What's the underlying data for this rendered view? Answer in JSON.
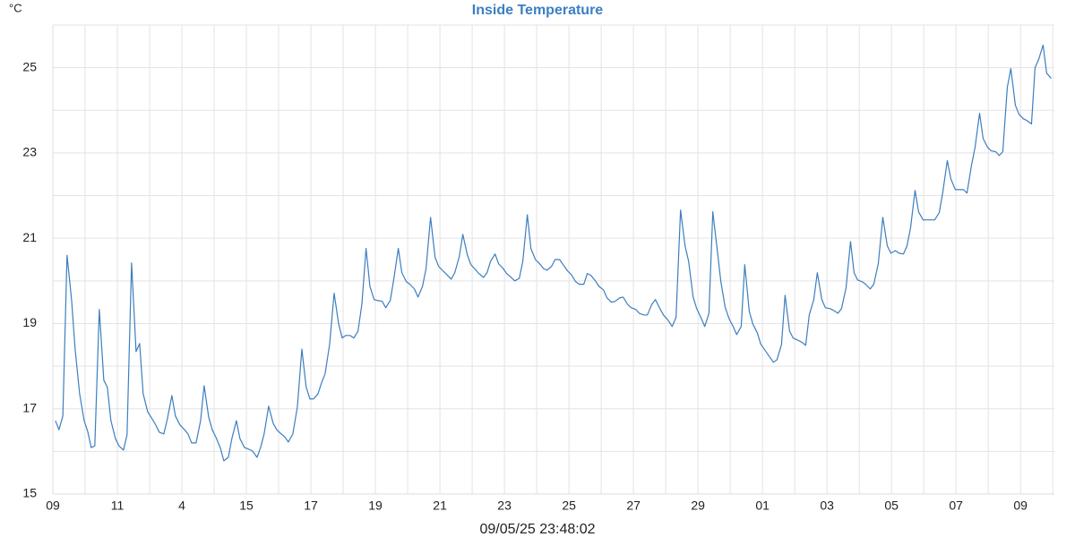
{
  "chart_data": {
    "type": "line",
    "title": "Inside Temperature",
    "y_unit": "°C",
    "xlabel": "09/05/25 23:48:02",
    "xlim": [
      0,
      31.05
    ],
    "ylim": [
      15,
      26
    ],
    "xticks": [
      {
        "value": 0,
        "label": "09"
      },
      {
        "value": 2,
        "label": "11"
      },
      4,
      {
        "value": 6,
        "label": "15"
      },
      {
        "value": 8,
        "label": "17"
      },
      {
        "value": 10,
        "label": "19"
      },
      {
        "value": 12,
        "label": "21"
      },
      {
        "value": 14,
        "label": "23"
      },
      {
        "value": 16,
        "label": "25"
      },
      {
        "value": 18,
        "label": "27"
      },
      {
        "value": 20,
        "label": "29"
      },
      {
        "value": 22,
        "label": "01"
      },
      {
        "value": 24,
        "label": "03"
      },
      {
        "value": 26,
        "label": "05"
      },
      {
        "value": 28,
        "label": "07"
      },
      {
        "value": 30,
        "label": "09"
      }
    ],
    "xminorticks": [
      1,
      3,
      5,
      7,
      9,
      11,
      13,
      15,
      17,
      19,
      21,
      23,
      25,
      27,
      29,
      31
    ],
    "yticks": [
      15,
      17,
      19,
      21,
      23,
      25
    ],
    "yminorticks": [
      16,
      18,
      20,
      22,
      24,
      26
    ],
    "grid": true,
    "series": [
      {
        "color": "#3d7ebf",
        "x": [
          0.08,
          0.19,
          0.31,
          0.44,
          0.58,
          0.69,
          0.83,
          0.97,
          1.08,
          1.19,
          1.3,
          1.44,
          1.58,
          1.69,
          1.8,
          1.94,
          2.05,
          2.19,
          2.3,
          2.44,
          2.58,
          2.69,
          2.8,
          2.94,
          3.08,
          3.19,
          3.3,
          3.44,
          3.55,
          3.69,
          3.8,
          3.94,
          4.08,
          4.19,
          4.3,
          4.44,
          4.58,
          4.69,
          4.83,
          4.94,
          5.05,
          5.19,
          5.3,
          5.44,
          5.55,
          5.69,
          5.8,
          5.94,
          6.08,
          6.19,
          6.33,
          6.44,
          6.55,
          6.69,
          6.83,
          6.94,
          7.05,
          7.19,
          7.3,
          7.44,
          7.58,
          7.72,
          7.85,
          7.97,
          8.08,
          8.22,
          8.33,
          8.44,
          8.58,
          8.72,
          8.86,
          8.97,
          9.08,
          9.21,
          9.33,
          9.46,
          9.58,
          9.71,
          9.83,
          9.96,
          10.07,
          10.21,
          10.32,
          10.46,
          10.57,
          10.71,
          10.82,
          10.96,
          11.07,
          11.21,
          11.32,
          11.46,
          11.57,
          11.71,
          11.85,
          11.96,
          12.1,
          12.21,
          12.35,
          12.46,
          12.6,
          12.71,
          12.85,
          12.96,
          13.07,
          13.21,
          13.35,
          13.46,
          13.57,
          13.71,
          13.82,
          13.96,
          14.07,
          14.21,
          14.32,
          14.46,
          14.57,
          14.71,
          14.82,
          14.96,
          15.07,
          15.21,
          15.32,
          15.46,
          15.57,
          15.71,
          15.82,
          15.96,
          16.07,
          16.21,
          16.32,
          16.46,
          16.57,
          16.68,
          16.82,
          16.93,
          17.07,
          17.18,
          17.32,
          17.43,
          17.57,
          17.68,
          17.82,
          17.93,
          18.07,
          18.18,
          18.32,
          18.43,
          18.57,
          18.68,
          18.82,
          18.93,
          19.07,
          19.2,
          19.32,
          19.46,
          19.6,
          19.71,
          19.85,
          19.96,
          20.09,
          20.21,
          20.34,
          20.46,
          20.6,
          20.71,
          20.84,
          20.96,
          21.09,
          21.2,
          21.34,
          21.45,
          21.59,
          21.7,
          21.84,
          21.95,
          22.09,
          22.2,
          22.34,
          22.45,
          22.59,
          22.7,
          22.84,
          22.95,
          23.09,
          23.2,
          23.34,
          23.45,
          23.59,
          23.7,
          23.84,
          23.95,
          24.09,
          24.2,
          24.34,
          24.45,
          24.59,
          24.73,
          24.84,
          24.95,
          25.09,
          25.2,
          25.34,
          25.45,
          25.59,
          25.73,
          25.87,
          25.98,
          26.12,
          26.23,
          26.37,
          26.48,
          26.59,
          26.73,
          26.84,
          26.98,
          27.09,
          27.23,
          27.34,
          27.48,
          27.59,
          27.73,
          27.84,
          27.98,
          28.09,
          28.23,
          28.34,
          28.48,
          28.59,
          28.73,
          28.84,
          28.98,
          29.09,
          29.23,
          29.34,
          29.45,
          29.59,
          29.7,
          29.84,
          29.95,
          30.09,
          30.2,
          30.34,
          30.45,
          30.56,
          30.7,
          30.81,
          30.95
        ],
        "values": [
          16.72,
          16.51,
          16.83,
          20.6,
          19.56,
          18.4,
          17.35,
          16.72,
          16.47,
          16.09,
          16.13,
          19.33,
          17.67,
          17.5,
          16.72,
          16.3,
          16.13,
          16.03,
          16.39,
          20.42,
          18.34,
          18.53,
          17.35,
          16.93,
          16.76,
          16.62,
          16.45,
          16.41,
          16.76,
          17.31,
          16.83,
          16.62,
          16.51,
          16.41,
          16.2,
          16.2,
          16.72,
          17.54,
          16.81,
          16.51,
          16.34,
          16.09,
          15.78,
          15.86,
          16.3,
          16.72,
          16.3,
          16.09,
          16.05,
          16.01,
          15.86,
          16.09,
          16.41,
          17.06,
          16.66,
          16.51,
          16.43,
          16.34,
          16.22,
          16.41,
          17.04,
          18.4,
          17.52,
          17.23,
          17.23,
          17.35,
          17.61,
          17.82,
          18.51,
          19.71,
          18.99,
          18.66,
          18.72,
          18.72,
          18.66,
          18.82,
          19.45,
          20.76,
          19.87,
          19.56,
          19.54,
          19.52,
          19.37,
          19.54,
          20.04,
          20.76,
          20.19,
          19.98,
          19.92,
          19.81,
          19.62,
          19.87,
          20.29,
          21.49,
          20.55,
          20.34,
          20.23,
          20.15,
          20.04,
          20.19,
          20.57,
          21.09,
          20.61,
          20.38,
          20.29,
          20.17,
          20.08,
          20.19,
          20.46,
          20.63,
          20.4,
          20.29,
          20.17,
          20.08,
          20.0,
          20.06,
          20.46,
          21.55,
          20.76,
          20.5,
          20.42,
          20.29,
          20.25,
          20.34,
          20.5,
          20.5,
          20.38,
          20.23,
          20.15,
          19.98,
          19.92,
          19.92,
          20.17,
          20.13,
          20.0,
          19.87,
          19.79,
          19.6,
          19.5,
          19.52,
          19.6,
          19.62,
          19.45,
          19.37,
          19.33,
          19.24,
          19.2,
          19.2,
          19.45,
          19.56,
          19.35,
          19.2,
          19.08,
          18.93,
          19.14,
          21.66,
          20.82,
          20.46,
          19.62,
          19.35,
          19.14,
          18.93,
          19.24,
          21.62,
          20.71,
          19.98,
          19.39,
          19.12,
          18.93,
          18.74,
          18.93,
          20.38,
          19.29,
          18.99,
          18.78,
          18.51,
          18.36,
          18.24,
          18.09,
          18.15,
          18.51,
          19.66,
          18.82,
          18.66,
          18.61,
          18.57,
          18.49,
          19.2,
          19.56,
          20.19,
          19.56,
          19.37,
          19.35,
          19.31,
          19.24,
          19.35,
          19.83,
          20.92,
          20.19,
          20.02,
          19.98,
          19.92,
          19.81,
          19.92,
          20.4,
          21.49,
          20.82,
          20.65,
          20.71,
          20.65,
          20.63,
          20.82,
          21.24,
          22.12,
          21.62,
          21.43,
          21.43,
          21.43,
          21.43,
          21.6,
          22.08,
          22.82,
          22.39,
          22.14,
          22.14,
          22.14,
          22.06,
          22.71,
          23.13,
          23.93,
          23.34,
          23.13,
          23.05,
          23.03,
          22.94,
          23.03,
          24.54,
          24.98,
          24.12,
          23.91,
          23.8,
          23.76,
          23.68,
          25.0,
          25.19,
          25.53,
          24.87,
          24.75
        ]
      }
    ]
  }
}
